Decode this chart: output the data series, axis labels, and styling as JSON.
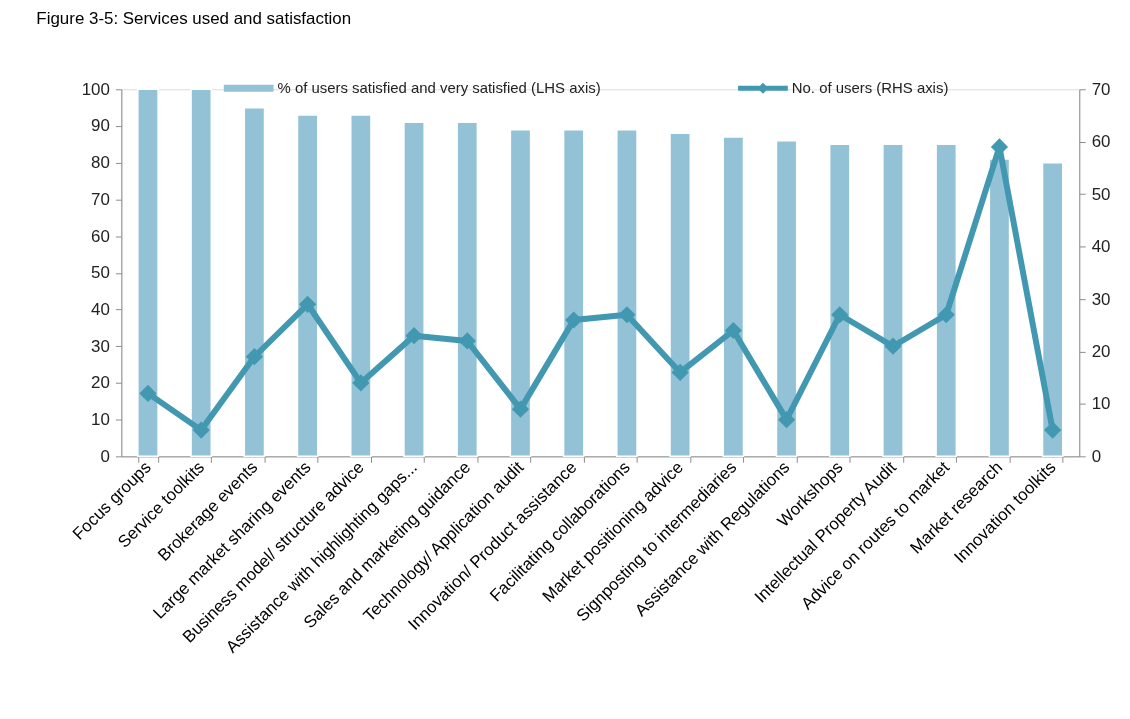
{
  "chart_data": {
    "type": "bar",
    "title": "Figure 3-5: Services used and satisfaction",
    "categories": [
      "Focus groups",
      "Service toolkits",
      "Brokerage events",
      "Large market sharing events",
      "Business model/ structure advice",
      "Assistance with highlighting gaps...",
      "Sales and marketing guidance",
      "Technology/ Application audit",
      "Innovation/ Product assistance",
      "Facilitating collaborations",
      "Market positioning advice",
      "Signposting to intermediaries",
      "Assistance with Regulations",
      "Workshops",
      "Intellectual Property Audit",
      "Advice on routes to market",
      "Market research",
      "Innovation toolkits"
    ],
    "series": [
      {
        "name": "% of users satisfied and very satisfied (LHS axis)",
        "color": "#93c2d6",
        "values": [
          100,
          100,
          95,
          93,
          93,
          91,
          91,
          89,
          89,
          89,
          88,
          87,
          86,
          85,
          85,
          85,
          81,
          80
        ]
      },
      {
        "name": "No. of users (RHS axis)",
        "type": "line",
        "axis": "y2",
        "color": "#4298b1",
        "marker": "diamond",
        "values": [
          12,
          5,
          19,
          29,
          14,
          23,
          22,
          9,
          26,
          27,
          16,
          24,
          7,
          27,
          21,
          27,
          59,
          5
        ]
      }
    ],
    "ylim": [
      0,
      100
    ],
    "yticks": [
      0,
      10,
      20,
      30,
      40,
      50,
      60,
      70,
      80,
      90,
      100
    ],
    "y2lim": [
      0,
      70
    ],
    "y2ticks": [
      0,
      10,
      20,
      30,
      40,
      50,
      60,
      70
    ],
    "legend": "top"
  }
}
